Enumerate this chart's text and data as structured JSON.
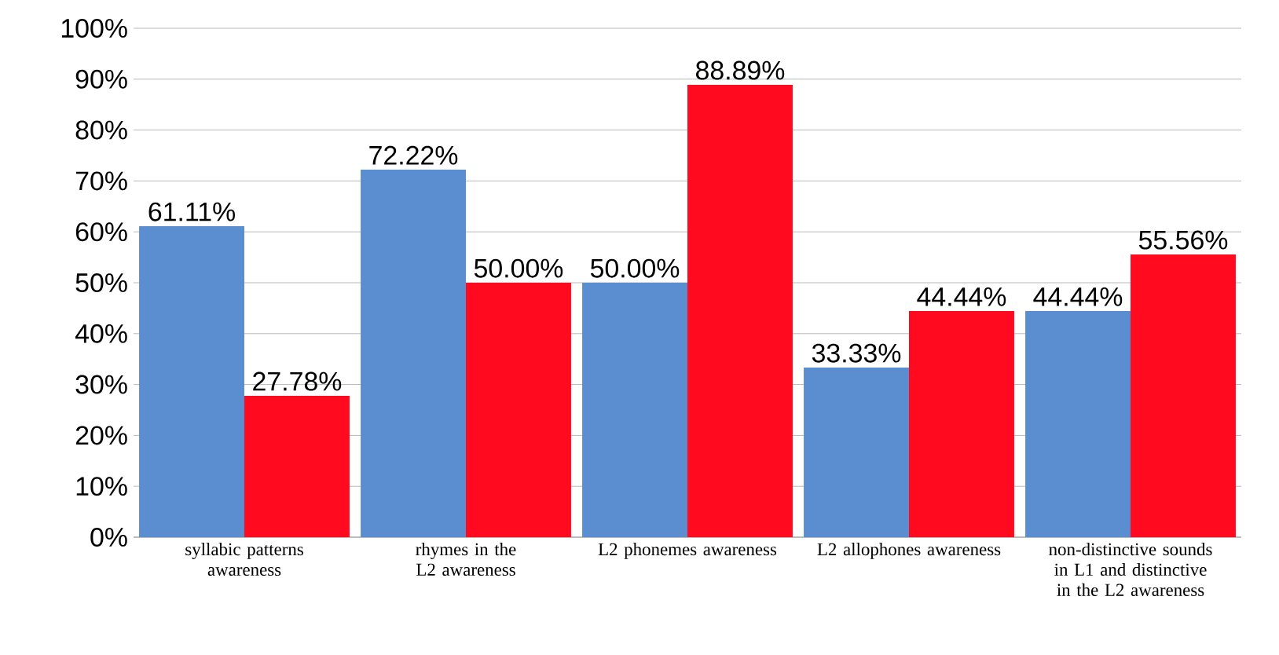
{
  "chart_data": {
    "type": "bar",
    "categories": [
      "syllabic patterns awareness",
      "rhymes in the L2 awareness",
      "L2 phonemes awareness",
      "L2 allophones awareness",
      "non-distinctive sounds in L1 and distinctive in the L2 awareness"
    ],
    "series": [
      {
        "color": "#5a8ed0",
        "values": [
          61.11,
          72.22,
          50.0,
          33.33,
          44.44
        ],
        "value_labels": [
          "61.11%",
          "72.22%",
          "50.00%",
          "33.33%",
          "44.44%"
        ]
      },
      {
        "color": "#ff0a1e",
        "values": [
          27.78,
          50.0,
          88.89,
          44.44,
          55.56
        ],
        "value_labels": [
          "27.78%",
          "50.00%",
          "88.89%",
          "44.44%",
          "55.56%"
        ]
      }
    ],
    "ylim": [
      0,
      100
    ],
    "yticks": [
      {
        "value": 0,
        "label": "0%"
      },
      {
        "value": 10,
        "label": "10%"
      },
      {
        "value": 20,
        "label": "20%"
      },
      {
        "value": 30,
        "label": "30%"
      },
      {
        "value": 40,
        "label": "40%"
      },
      {
        "value": 50,
        "label": "50%"
      },
      {
        "value": 60,
        "label": "60%"
      },
      {
        "value": 70,
        "label": "70%"
      },
      {
        "value": 80,
        "label": "80%"
      },
      {
        "value": 90,
        "label": "90%"
      },
      {
        "value": 100,
        "label": "100%"
      }
    ],
    "grid": "y"
  }
}
